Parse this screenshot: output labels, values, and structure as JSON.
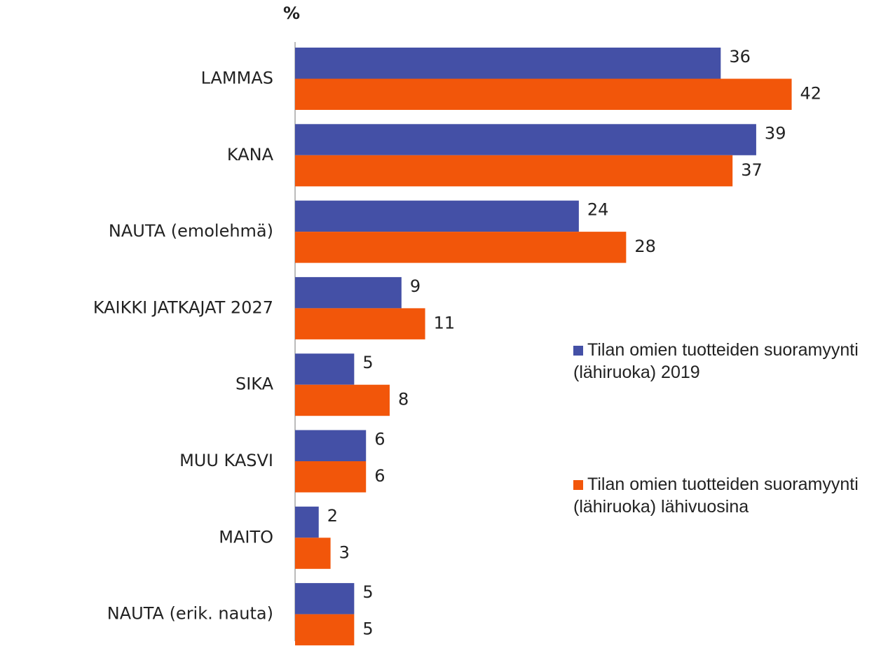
{
  "chart_data": {
    "type": "bar",
    "orientation": "horizontal",
    "title": "%",
    "categories": [
      "LAMMAS",
      "KANA",
      "NAUTA (emolehmä)",
      "KAIKKI JATKAJAT 2027",
      "SIKA",
      "MUU KASVI",
      "MAITO",
      "NAUTA (erik. nauta)"
    ],
    "series": [
      {
        "name": "Tilan omien tuotteiden suoramyynti (lähiruoka) 2019",
        "color": "#4450a6",
        "values": [
          36,
          39,
          24,
          9,
          5,
          6,
          2,
          5
        ]
      },
      {
        "name": "Tilan omien tuotteiden suoramyynti (lähiruoka) lähivuosina",
        "color": "#f2560a",
        "values": [
          42,
          37,
          28,
          11,
          8,
          6,
          3,
          5
        ]
      }
    ]
  }
}
